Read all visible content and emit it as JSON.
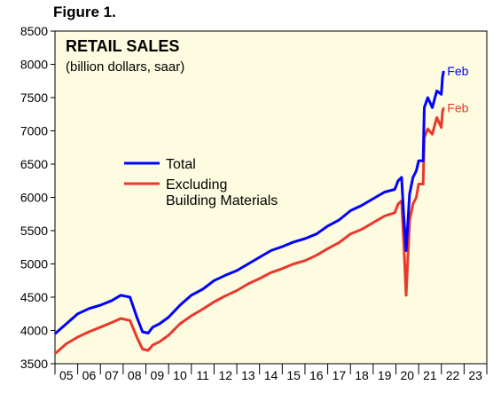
{
  "figure_label": "Figure 1.",
  "chart_data": {
    "type": "line",
    "title": "RETAIL SALES",
    "subtitle": "(billion dollars, saar)",
    "xlabel": "",
    "ylabel": "",
    "ylim": [
      3500,
      8500
    ],
    "yticks": [
      3500,
      4000,
      4500,
      5000,
      5500,
      6000,
      6500,
      7000,
      7500,
      8000,
      8500
    ],
    "xlim": [
      2005,
      2024
    ],
    "xtick_labels": [
      "05",
      "06",
      "07",
      "08",
      "09",
      "10",
      "11",
      "12",
      "13",
      "14",
      "15",
      "16",
      "17",
      "18",
      "19",
      "20",
      "21",
      "22",
      "23"
    ],
    "legend_position": "center-left",
    "grid": false,
    "background": "#fdfbe0",
    "end_labels": [
      "Feb",
      "Feb"
    ],
    "series": [
      {
        "name": "Total",
        "color": "#0000ff",
        "x": [
          2005.0,
          2005.5,
          2006.0,
          2006.5,
          2007.0,
          2007.5,
          2007.9,
          2008.3,
          2008.6,
          2008.85,
          2009.1,
          2009.3,
          2009.6,
          2010.0,
          2010.5,
          2011.0,
          2011.5,
          2012.0,
          2012.5,
          2013.0,
          2013.5,
          2014.0,
          2014.5,
          2015.0,
          2015.5,
          2016.0,
          2016.5,
          2017.0,
          2017.5,
          2018.0,
          2018.5,
          2019.0,
          2019.5,
          2019.95,
          2020.1,
          2020.25,
          2020.35,
          2020.45,
          2020.6,
          2020.75,
          2020.9,
          2021.0,
          2021.2,
          2021.25,
          2021.4,
          2021.6,
          2021.8,
          2022.0,
          2022.05,
          2022.1
        ],
        "y": [
          3950,
          4100,
          4250,
          4330,
          4380,
          4450,
          4530,
          4500,
          4200,
          3980,
          3960,
          4050,
          4100,
          4200,
          4380,
          4530,
          4620,
          4750,
          4830,
          4900,
          5000,
          5100,
          5200,
          5260,
          5330,
          5380,
          5450,
          5570,
          5660,
          5800,
          5880,
          5980,
          6080,
          6120,
          6250,
          6300,
          5700,
          5200,
          6050,
          6300,
          6400,
          6550,
          6550,
          7350,
          7500,
          7350,
          7600,
          7550,
          7800,
          7900
        ]
      },
      {
        "name": "Excluding Building Materials",
        "color": "#e8392b",
        "x": [
          2005.0,
          2005.5,
          2006.0,
          2006.5,
          2007.0,
          2007.5,
          2007.9,
          2008.3,
          2008.6,
          2008.85,
          2009.1,
          2009.3,
          2009.6,
          2010.0,
          2010.5,
          2011.0,
          2011.5,
          2012.0,
          2012.5,
          2013.0,
          2013.5,
          2014.0,
          2014.5,
          2015.0,
          2015.5,
          2016.0,
          2016.5,
          2017.0,
          2017.5,
          2018.0,
          2018.5,
          2019.0,
          2019.5,
          2019.95,
          2020.1,
          2020.25,
          2020.35,
          2020.45,
          2020.6,
          2020.75,
          2020.9,
          2021.0,
          2021.2,
          2021.25,
          2021.4,
          2021.6,
          2021.8,
          2022.0,
          2022.05,
          2022.1
        ],
        "y": [
          3650,
          3800,
          3900,
          3980,
          4050,
          4120,
          4180,
          4150,
          3900,
          3720,
          3700,
          3780,
          3830,
          3930,
          4100,
          4220,
          4320,
          4430,
          4520,
          4600,
          4700,
          4780,
          4870,
          4930,
          5000,
          5050,
          5130,
          5230,
          5320,
          5450,
          5520,
          5620,
          5720,
          5770,
          5900,
          5950,
          5300,
          4530,
          5650,
          5900,
          6000,
          6200,
          6200,
          6900,
          7030,
          6950,
          7200,
          7050,
          7280,
          7350
        ]
      }
    ]
  }
}
